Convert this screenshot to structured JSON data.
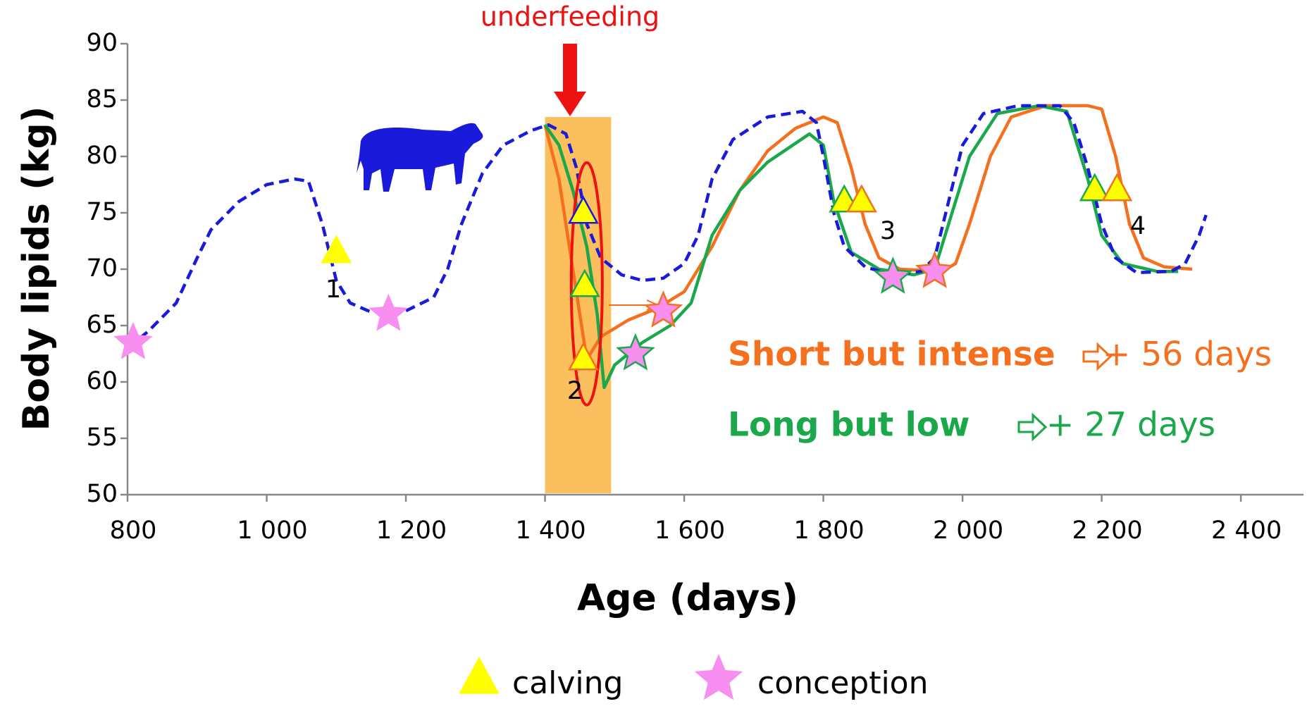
{
  "chart_data": {
    "type": "line",
    "xlabel": "Age (days)",
    "ylabel": "Body lipids (kg)",
    "xlim": [
      800,
      2490
    ],
    "ylim": [
      50,
      90
    ],
    "xticks": [
      800,
      {
        "value": 1000,
        "label": "1 000"
      },
      {
        "value": 1200,
        "label": "1 200"
      },
      {
        "value": 1400,
        "label": "1 400"
      },
      {
        "value": 1600,
        "label": "1 600"
      },
      {
        "value": 1800,
        "label": "1 800"
      },
      {
        "value": 2000,
        "label": "2 000"
      },
      {
        "value": 2200,
        "label": "2 200"
      },
      {
        "value": 2400,
        "label": "2 400"
      }
    ],
    "yticks": [
      50,
      55,
      60,
      65,
      70,
      75,
      80,
      85,
      90
    ],
    "grid": false,
    "underfeeding": {
      "label": "underfeeding",
      "color": "#ee1111",
      "period": [
        1400,
        1495
      ],
      "band_color": "#fbbf5e"
    },
    "series": [
      {
        "color": "#1a1adb",
        "dashed": true,
        "x": [
          800,
          830,
          870,
          900,
          920,
          960,
          1000,
          1040,
          1060,
          1080,
          1100,
          1120,
          1150,
          1200,
          1240,
          1260,
          1280,
          1310,
          1340,
          1380,
          1405,
          1430,
          1445,
          1460,
          1480,
          1510,
          1540,
          1570,
          1600,
          1620,
          1640,
          1670,
          1720,
          1770,
          1790,
          1800,
          1815,
          1830,
          1860,
          1900,
          1940,
          1960,
          1980,
          2000,
          2030,
          2080,
          2140,
          2160,
          2180,
          2200,
          2220,
          2250,
          2300,
          2320,
          2340,
          2350
        ],
        "values": [
          63,
          64.5,
          67,
          71,
          73.5,
          76,
          77.5,
          78,
          77.8,
          74,
          69,
          67,
          66.2,
          66.3,
          67.5,
          70,
          74,
          78.5,
          81,
          82.3,
          82.8,
          82,
          79,
          74,
          71,
          69.5,
          69,
          69.2,
          70.5,
          73,
          78,
          81.5,
          83.5,
          84,
          83,
          80,
          75,
          72,
          70.2,
          69.5,
          69.8,
          71,
          76,
          81,
          83.8,
          84.5,
          84.5,
          83,
          79,
          74,
          71,
          69.7,
          69.8,
          70.5,
          73,
          74.8
        ]
      },
      {
        "color": "#f5701e",
        "dashed": false,
        "x": [
          1400,
          1420,
          1440,
          1455,
          1460,
          1480,
          1520,
          1560,
          1600,
          1640,
          1680,
          1720,
          1760,
          1800,
          1820,
          1840,
          1860,
          1880,
          1910,
          1970,
          1990,
          2010,
          2040,
          2070,
          2120,
          2180,
          2200,
          2220,
          2240,
          2260,
          2290,
          2330
        ],
        "values": [
          82.8,
          78,
          70,
          64,
          62,
          64,
          65.5,
          66.5,
          68,
          72,
          77,
          80.5,
          82.5,
          83.5,
          83,
          79,
          74,
          71,
          70,
          69.8,
          70.5,
          74,
          80,
          83.5,
          84.5,
          84.5,
          84.2,
          80,
          74,
          71,
          70.2,
          70
        ]
      },
      {
        "color": "#1aa84a",
        "dashed": false,
        "x": [
          1400,
          1420,
          1440,
          1460,
          1475,
          1485,
          1500,
          1540,
          1580,
          1610,
          1640,
          1680,
          1720,
          1780,
          1800,
          1815,
          1840,
          1880,
          1930,
          1960,
          1980,
          2010,
          2050,
          2110,
          2150,
          2180,
          2200,
          2230,
          2280,
          2310
        ],
        "values": [
          82.8,
          81,
          77,
          72,
          66,
          59.5,
          61.5,
          63.5,
          65,
          67,
          73,
          77,
          79.5,
          82,
          81,
          76,
          71.5,
          70,
          69.5,
          70,
          74,
          80,
          83.8,
          84.5,
          84,
          78,
          73,
          70.5,
          69.8,
          69.8
        ]
      }
    ],
    "markers": [
      {
        "name": "calving",
        "shape": "triangle",
        "fill": "#ffff00",
        "x": [
          1100,
          1455,
          1457,
          1455,
          1830,
          1855,
          2190,
          2222
        ],
        "values": [
          71.5,
          75,
          68.5,
          62,
          76,
          76,
          77,
          77
        ],
        "edge_colors": [
          "#ffff00",
          "#1a1adb",
          "#1aa84a",
          "#f5701e",
          "#1aa84a",
          "#f5701e",
          "#1aa84a",
          "#f5701e"
        ]
      },
      {
        "name": "conception",
        "shape": "star",
        "fill": "#f78ef0",
        "x": [
          808,
          1175,
          1570,
          1530,
          1900,
          1960
        ],
        "values": [
          63.5,
          66,
          66.3,
          62.5,
          69.3,
          69.8
        ],
        "edge_colors": [
          "#f78ef0",
          "#f78ef0",
          "#f5701e",
          "#1aa84a",
          "#1aa84a",
          "#f5701e"
        ]
      }
    ],
    "cycle_labels": [
      "1",
      "2",
      "3",
      "4"
    ],
    "annotations": [
      {
        "text": "Short but intense",
        "delay": "+ 56 days",
        "color": "#f5701e"
      },
      {
        "text": "Long but low",
        "delay": "+ 27 days",
        "color": "#1aa84a"
      }
    ]
  }
}
